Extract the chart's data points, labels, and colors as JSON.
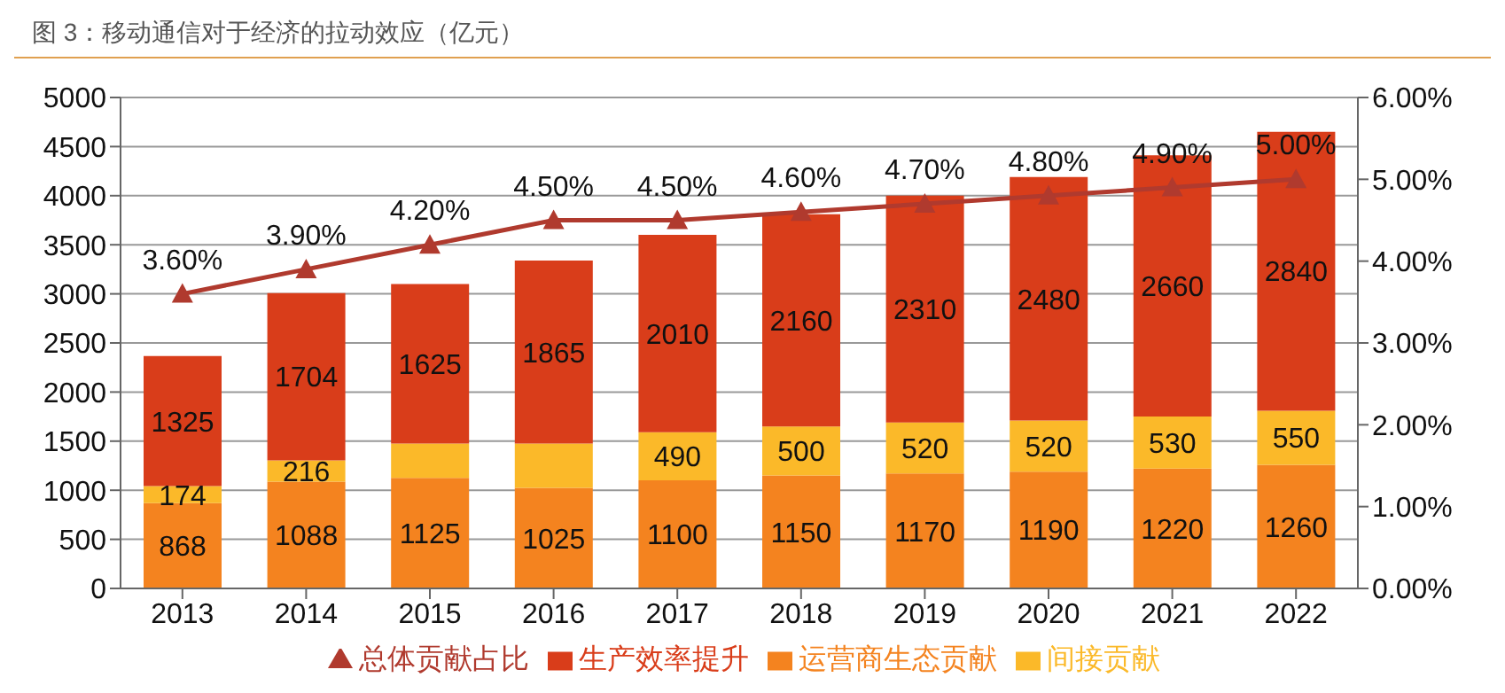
{
  "chart_data": {
    "type": "bar",
    "title": "图 3：移动通信对于经济的拉动效应（亿元）",
    "stacked": true,
    "categories": [
      "2013",
      "2014",
      "2015",
      "2016",
      "2017",
      "2018",
      "2019",
      "2020",
      "2021",
      "2022"
    ],
    "series": [
      {
        "name": "运营商生态贡献",
        "color": "#f4831f",
        "values": [
          868,
          1088,
          1125,
          1025,
          1100,
          1150,
          1170,
          1190,
          1220,
          1260
        ],
        "value_labels": [
          "868",
          "1088",
          "1125",
          "1025",
          "1100",
          "1150",
          "1170",
          "1190",
          "1220",
          "1260"
        ]
      },
      {
        "name": "间接贡献",
        "color": "#fbb929",
        "values": [
          174,
          216,
          350,
          450,
          490,
          500,
          520,
          520,
          530,
          550
        ],
        "value_labels": [
          "174",
          "216",
          null,
          null,
          "490",
          "500",
          "520",
          "520",
          "530",
          "550"
        ]
      },
      {
        "name": "生产效率提升",
        "color": "#d93d1a",
        "values": [
          1325,
          1704,
          1625,
          1865,
          2010,
          2160,
          2310,
          2480,
          2660,
          2840
        ],
        "value_labels": [
          "1325",
          "1704",
          "1625",
          "1865",
          "2010",
          "2160",
          "2310",
          "2480",
          "2660",
          "2840"
        ]
      },
      {
        "name": "总体贡献占比",
        "type": "line",
        "axis": "y2",
        "color": "#b03a2e",
        "marker": "triangle",
        "values": [
          3.6,
          3.9,
          4.2,
          4.5,
          4.5,
          4.6,
          4.7,
          4.8,
          4.9,
          5.0
        ],
        "value_labels": [
          "3.60%",
          "3.90%",
          "4.20%",
          "4.50%",
          "4.50%",
          "4.60%",
          "4.70%",
          "4.80%",
          "4.90%",
          "5.00%"
        ]
      }
    ],
    "ylim": [
      0,
      5000
    ],
    "yticks": [
      0,
      500,
      1000,
      1500,
      2000,
      2500,
      3000,
      3500,
      4000,
      4500,
      5000
    ],
    "y2lim": [
      0,
      6
    ],
    "y2ticks": [
      {
        "value": 0,
        "label": "0.00%"
      },
      {
        "value": 1,
        "label": "1.00%"
      },
      {
        "value": 2,
        "label": "2.00%"
      },
      {
        "value": 3,
        "label": "3.00%"
      },
      {
        "value": 4,
        "label": "4.00%"
      },
      {
        "value": 5,
        "label": "5.00%"
      },
      {
        "value": 6,
        "label": "6.00%"
      }
    ],
    "grid": "y",
    "legend": "bottom"
  }
}
